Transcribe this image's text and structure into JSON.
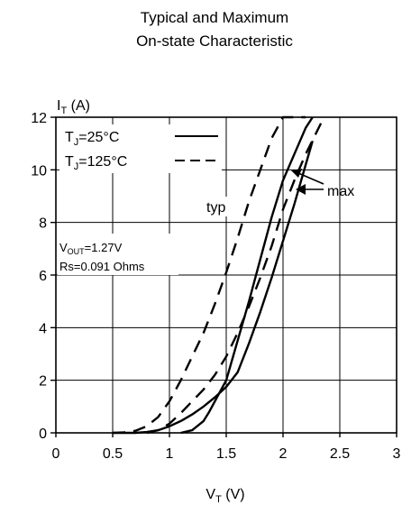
{
  "chart_data": {
    "type": "line",
    "title_lines": [
      "Typical and Maximum",
      "On-state Characteristic"
    ],
    "ylabel": {
      "main": "I",
      "sub": "T",
      "unit": " (A)"
    },
    "xlabel": {
      "main": "V",
      "sub": "T",
      "unit": " (V)"
    },
    "xlim": [
      0,
      3
    ],
    "ylim": [
      0,
      12
    ],
    "xticks": [
      0,
      0.5,
      1,
      1.5,
      2,
      2.5,
      3
    ],
    "xtick_labels": [
      "0",
      "0.5",
      "1",
      "1.5",
      "2",
      "2.5",
      "3"
    ],
    "yticks": [
      0,
      2,
      4,
      6,
      8,
      10,
      12
    ],
    "ytick_labels": [
      "0",
      "2",
      "4",
      "6",
      "8",
      "10",
      "12"
    ],
    "grid": true,
    "legend": {
      "position": "top-left",
      "entries": [
        {
          "main": "T",
          "sub": "J",
          "rest": "=25°C",
          "dash": "solid"
        },
        {
          "main": "T",
          "sub": "J",
          "rest": "=125°C",
          "dash": "dashed"
        }
      ]
    },
    "annotations": {
      "typ": "typ",
      "max": "max",
      "vout": {
        "main": "V",
        "sub": "OUT",
        "rest": "=1.27V"
      },
      "rs": "Rs=0.091 Ohms"
    },
    "series": [
      {
        "style": "solid",
        "group": "typ",
        "x": [
          0.5,
          0.7,
          0.8,
          0.9,
          1.0,
          1.1,
          1.2,
          1.3,
          1.4,
          1.5,
          1.6,
          1.7,
          1.8,
          1.9,
          2.0,
          2.1,
          2.2,
          2.26
        ],
        "y": [
          0,
          0,
          0.03,
          0.1,
          0.25,
          0.45,
          0.7,
          1.0,
          1.35,
          1.75,
          2.3,
          3.4,
          4.6,
          5.9,
          7.3,
          8.7,
          10.2,
          11.1
        ]
      },
      {
        "style": "solid",
        "group": "max",
        "x": [
          1.1,
          1.2,
          1.3,
          1.35,
          1.4,
          1.45,
          1.5,
          1.6,
          1.7,
          1.8,
          1.9,
          2.0,
          2.1,
          2.2,
          2.26
        ],
        "y": [
          0,
          0.1,
          0.45,
          0.8,
          1.2,
          1.6,
          2.0,
          3.5,
          5.0,
          6.6,
          8.2,
          9.6,
          10.6,
          11.6,
          12.0
        ]
      },
      {
        "style": "dashed",
        "group": "typ",
        "x": [
          0.5,
          0.6,
          0.7,
          0.8,
          0.9,
          1.0,
          1.1,
          1.2,
          1.3,
          1.4,
          1.5,
          1.6,
          1.7,
          1.8,
          1.9,
          2.0,
          2.1,
          2.2
        ],
        "y": [
          0,
          0.02,
          0.08,
          0.25,
          0.6,
          1.2,
          2.0,
          2.9,
          3.8,
          4.9,
          6.1,
          7.4,
          8.8,
          10.0,
          11.2,
          12.0,
          12.0,
          12.0
        ]
      },
      {
        "style": "dashed",
        "group": "max",
        "x": [
          0.8,
          0.9,
          1.0,
          1.1,
          1.2,
          1.3,
          1.4,
          1.5,
          1.6,
          1.7,
          1.8,
          1.9,
          2.0,
          2.1,
          2.2,
          2.28,
          2.36
        ],
        "y": [
          0,
          0.1,
          0.35,
          0.75,
          1.2,
          1.65,
          2.2,
          2.9,
          3.8,
          4.8,
          5.9,
          7.1,
          8.5,
          9.6,
          10.6,
          11.3,
          12.0
        ]
      }
    ],
    "colors": {
      "line": "#000000",
      "grid": "#000000",
      "background": "#ffffff"
    }
  }
}
